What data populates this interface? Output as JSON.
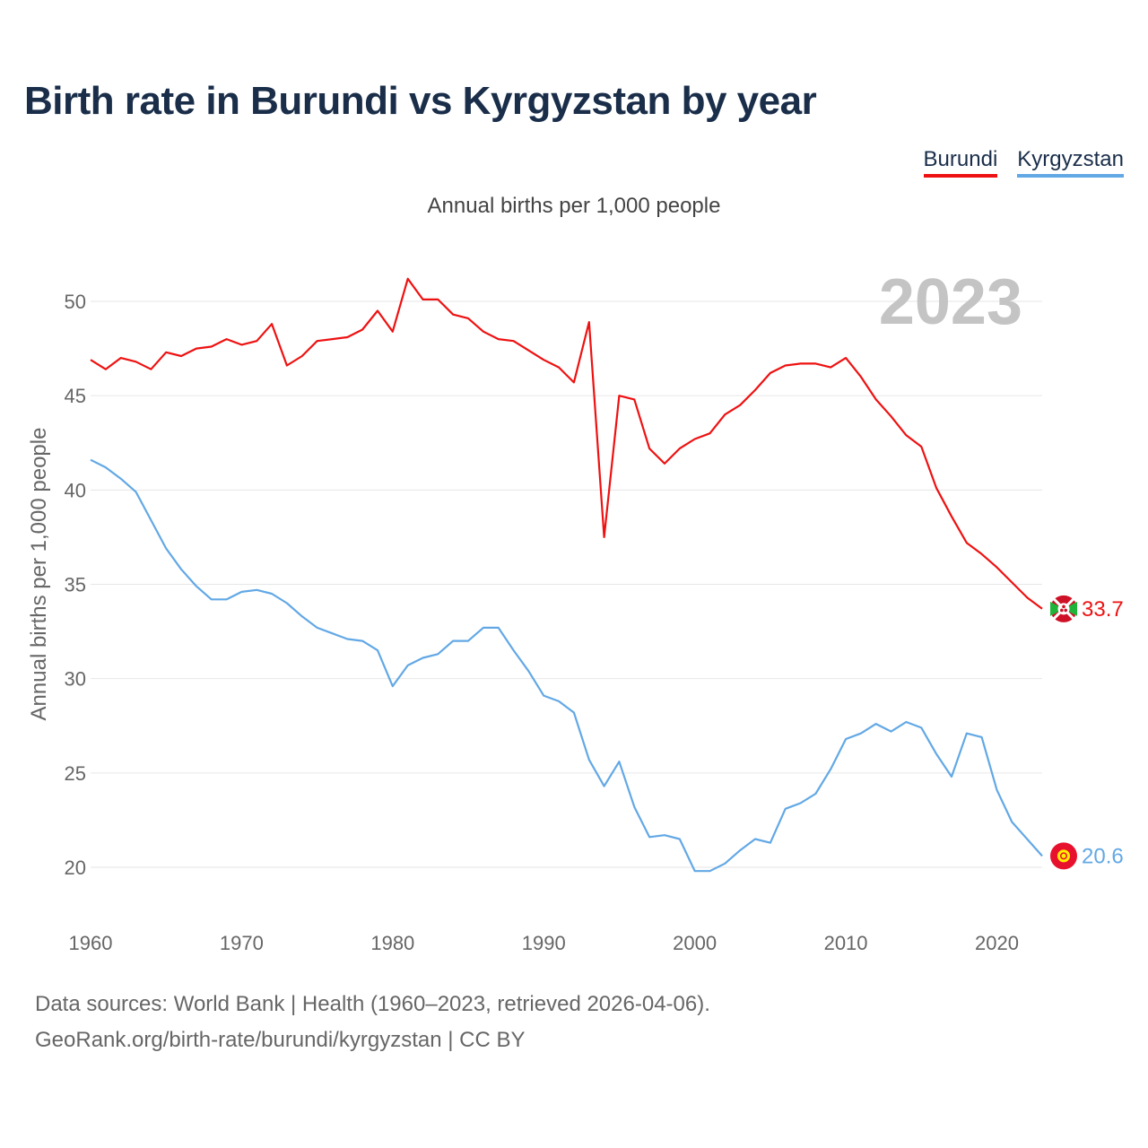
{
  "title": "Birth rate in Burundi vs Kyrgyzstan by year",
  "subtitle": "Annual births per 1,000 people",
  "legend": [
    {
      "label": "Burundi",
      "color": "#ee1111"
    },
    {
      "label": "Kyrgyzstan",
      "color": "#62a8e5"
    }
  ],
  "footer": {
    "line1": "Data sources: World Bank | Health (1960–2023, retrieved 2026-04-06).",
    "line2": "GeoRank.org/birth-rate/burundi/kyrgyzstan | CC BY"
  },
  "chart_data": {
    "type": "line",
    "title": "Birth rate in Burundi vs Kyrgyzstan by year",
    "xlabel": "",
    "ylabel": "Annual births per 1,000 people",
    "year_label": "2023",
    "xlim": [
      1960,
      2024
    ],
    "ylim": [
      17.5,
      53
    ],
    "x_ticks": [
      1960,
      1970,
      1980,
      1990,
      2000,
      2010,
      2020
    ],
    "y_ticks": [
      20,
      25,
      30,
      35,
      40,
      45,
      50
    ],
    "grid": true,
    "x": [
      1960,
      1961,
      1962,
      1963,
      1964,
      1965,
      1966,
      1967,
      1968,
      1969,
      1970,
      1971,
      1972,
      1973,
      1974,
      1975,
      1976,
      1977,
      1978,
      1979,
      1980,
      1981,
      1982,
      1983,
      1984,
      1985,
      1986,
      1987,
      1988,
      1989,
      1990,
      1991,
      1992,
      1993,
      1994,
      1995,
      1996,
      1997,
      1998,
      1999,
      2000,
      2001,
      2002,
      2003,
      2004,
      2005,
      2006,
      2007,
      2008,
      2009,
      2010,
      2011,
      2012,
      2013,
      2014,
      2015,
      2016,
      2017,
      2018,
      2019,
      2020,
      2021,
      2022,
      2023
    ],
    "series": [
      {
        "name": "Burundi",
        "color": "#ee1111",
        "end_label": "33.7",
        "values": [
          46.9,
          46.4,
          47.0,
          46.8,
          46.4,
          47.3,
          47.1,
          47.5,
          47.6,
          48.0,
          47.7,
          47.9,
          48.8,
          46.6,
          47.1,
          47.9,
          48.0,
          48.1,
          48.5,
          49.5,
          48.4,
          51.2,
          50.1,
          50.1,
          49.3,
          49.1,
          48.4,
          48.0,
          47.9,
          47.4,
          46.9,
          46.5,
          45.7,
          48.9,
          37.5,
          45.0,
          44.8,
          42.2,
          41.4,
          42.2,
          42.7,
          43.0,
          44.0,
          44.5,
          45.3,
          46.2,
          46.6,
          46.7,
          46.7,
          46.5,
          47.0,
          46.0,
          44.8,
          43.9,
          42.9,
          42.3,
          40.1,
          38.6,
          37.2,
          36.6,
          35.9,
          35.1,
          34.3,
          33.7
        ]
      },
      {
        "name": "Kyrgyzstan",
        "color": "#62a8e5",
        "end_label": "20.6",
        "values": [
          41.6,
          41.2,
          40.6,
          39.9,
          38.4,
          36.9,
          35.8,
          34.9,
          34.2,
          34.2,
          34.6,
          34.7,
          34.5,
          34.0,
          33.3,
          32.7,
          32.4,
          32.1,
          32.0,
          31.5,
          29.6,
          30.7,
          31.1,
          31.3,
          32.0,
          32.0,
          32.7,
          32.7,
          31.5,
          30.4,
          29.1,
          28.8,
          28.2,
          25.7,
          24.3,
          25.6,
          23.2,
          21.6,
          21.7,
          21.5,
          19.8,
          19.8,
          20.2,
          20.9,
          21.5,
          21.3,
          23.1,
          23.4,
          23.9,
          25.2,
          26.8,
          27.1,
          27.6,
          27.2,
          27.7,
          27.4,
          26.0,
          24.8,
          27.1,
          26.9,
          24.1,
          22.4,
          21.5,
          20.6
        ]
      }
    ]
  }
}
